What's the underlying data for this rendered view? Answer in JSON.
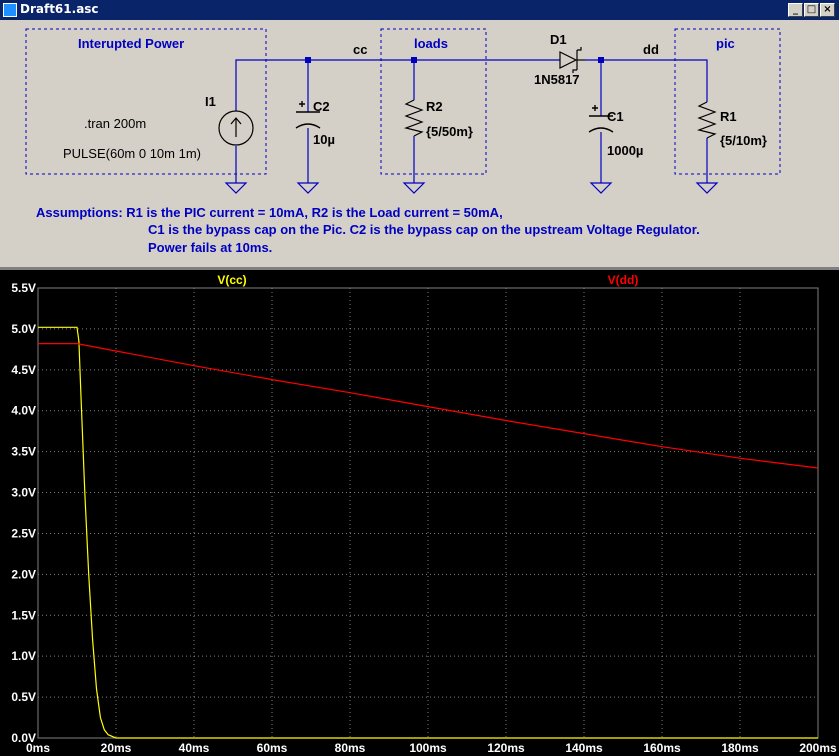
{
  "window": {
    "title": "Draft61.asc",
    "buttons": [
      "_",
      "□",
      "×"
    ]
  },
  "schematic": {
    "box_labels": {
      "power": "Interupted Power",
      "loads": "loads",
      "pic": "pic"
    },
    "net_labels": {
      "cc": "cc",
      "dd": "dd"
    },
    "I1": {
      "name": "I1",
      "directive": ".tran 200m",
      "pulse": "PULSE(60m 0 10m 1m)"
    },
    "C2": {
      "name": "C2",
      "value": "10µ"
    },
    "R2": {
      "name": "R2",
      "value": "{5/50m}"
    },
    "D1": {
      "name": "D1",
      "value": "1N5817"
    },
    "C1": {
      "name": "C1",
      "value": "1000µ"
    },
    "R1": {
      "name": "R1",
      "value": "{5/10m}"
    },
    "notes": [
      "Assumptions:  R1 is the PIC current = 10mA, R2 is the Load current = 50mA,",
      "C1 is the bypass cap on the Pic.  C2 is the bypass cap on the upstream Voltage Regulator.",
      "Power fails at 10ms."
    ],
    "colors": {
      "wire": "#0000c0",
      "label": "#0000c0",
      "component": "#000000"
    }
  },
  "chart_data": {
    "type": "line",
    "background": "#000000",
    "grid": true,
    "xlim": [
      0,
      200
    ],
    "ylim": [
      0,
      5.5
    ],
    "x_ticks": [
      "0ms",
      "20ms",
      "40ms",
      "60ms",
      "80ms",
      "100ms",
      "120ms",
      "140ms",
      "160ms",
      "180ms",
      "200ms"
    ],
    "y_ticks": [
      "0.0V",
      "0.5V",
      "1.0V",
      "1.5V",
      "2.0V",
      "2.5V",
      "3.0V",
      "3.5V",
      "4.0V",
      "4.5V",
      "5.0V",
      "5.5V"
    ],
    "series": [
      {
        "name": "V(cc)",
        "color": "#ffff00",
        "x": [
          0,
          10,
          10.5,
          11,
          12,
          13,
          14,
          15,
          16,
          17,
          18,
          20,
          200
        ],
        "y": [
          5.02,
          5.02,
          4.85,
          4.2,
          3.0,
          2.0,
          1.2,
          0.6,
          0.25,
          0.1,
          0.04,
          0.0,
          0.0
        ]
      },
      {
        "name": "V(dd)",
        "color": "#ff0000",
        "x": [
          0,
          10,
          20,
          40,
          60,
          80,
          100,
          120,
          140,
          160,
          180,
          200
        ],
        "y": [
          4.82,
          4.82,
          4.73,
          4.55,
          4.38,
          4.22,
          4.05,
          3.88,
          3.72,
          3.56,
          3.42,
          3.3
        ]
      }
    ]
  }
}
